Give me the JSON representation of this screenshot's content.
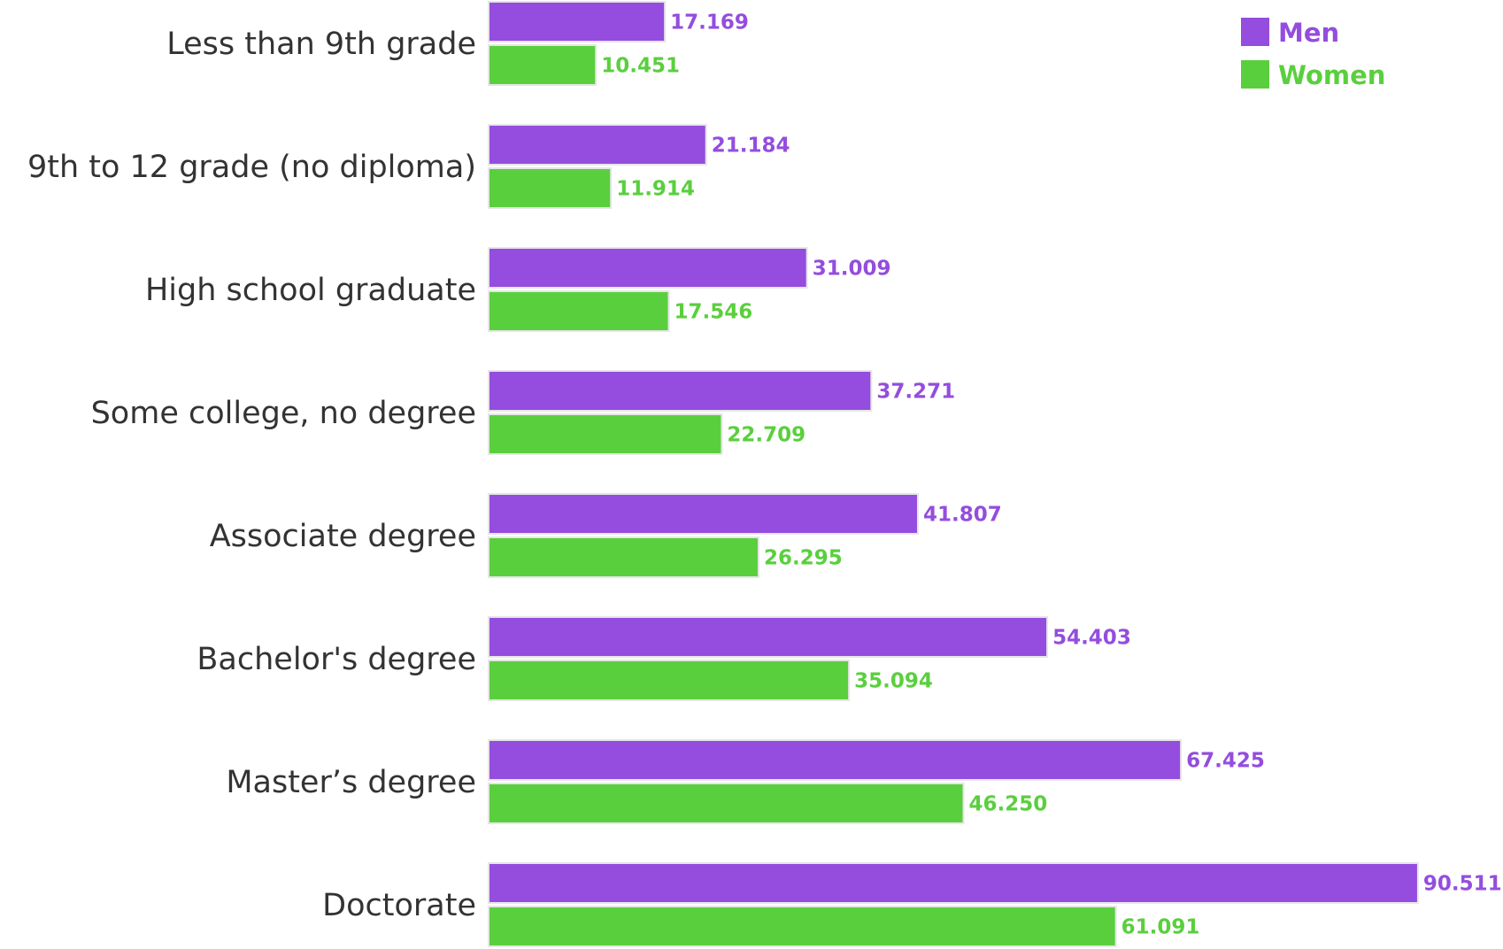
{
  "chart_data": {
    "type": "bar",
    "orientation": "horizontal",
    "categories": [
      "Less than 9th grade",
      "9th to 12 grade (no diploma)",
      "High school graduate",
      "Some college, no degree",
      "Associate degree",
      "Bachelor's degree",
      "Master’s degree",
      "Doctorate"
    ],
    "series": [
      {
        "name": "Men",
        "color": "#944dde",
        "values": [
          17.169,
          21.184,
          31.009,
          37.271,
          41.807,
          54.403,
          67.425,
          90.511
        ],
        "labels": [
          "17.169",
          "21.184",
          "31.009",
          "37.271",
          "41.807",
          "54.403",
          "67.425",
          "90.511"
        ]
      },
      {
        "name": "Women",
        "color": "#5acf3e",
        "values": [
          10.451,
          11.914,
          17.546,
          22.709,
          26.295,
          35.094,
          46.25,
          61.091
        ],
        "labels": [
          "10.451",
          "11.914",
          "17.546",
          "22.709",
          "26.295",
          "35.094",
          "46.250",
          "61.091"
        ]
      }
    ],
    "title": "",
    "xlabel": "",
    "ylabel": "",
    "xlim": [
      0,
      90.511
    ],
    "grid": false,
    "legend_position": "top-right"
  }
}
